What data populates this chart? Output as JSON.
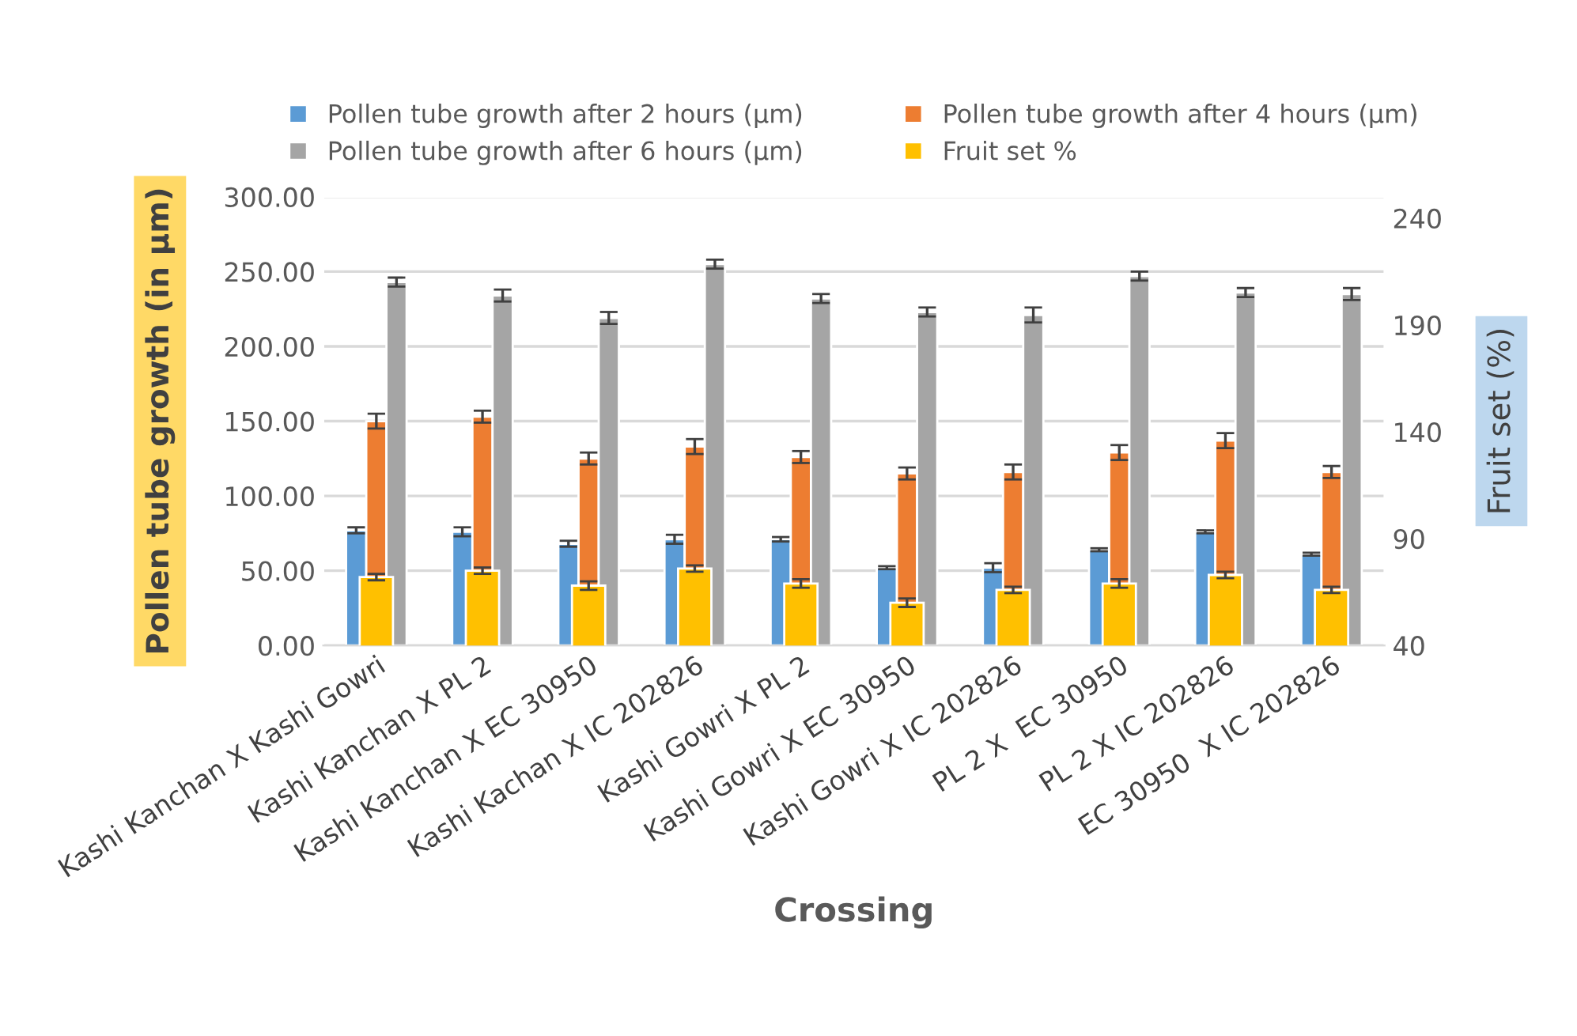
{
  "chart_data": {
    "type": "bar",
    "categories": [
      "Kashi Kanchan X Kashi Gowri",
      "Kashi Kanchan X PL 2",
      "Kashi Kanchan X EC 30950",
      "Kashi Kachan X IC 202826",
      "Kashi Gowri X PL 2",
      "Kashi Gowri X EC 30950",
      "Kashi Gowri X IC 202826",
      "PL 2 X  EC 30950",
      "PL 2 X IC 202826",
      "EC 30950  X IC 202826"
    ],
    "series": [
      {
        "name": "Pollen tube growth after 2 hours (µm)",
        "color": "#5b9bd5",
        "values": [
          77,
          76,
          68,
          71,
          71,
          52,
          52,
          64,
          76,
          61
        ],
        "errors": [
          2,
          3,
          2,
          3,
          1.5,
          1,
          3,
          1,
          1,
          1
        ]
      },
      {
        "name": "Pollen tube growth after 4 hours (µm)",
        "color": "#ed7d31",
        "values": [
          150,
          153,
          125,
          133,
          126,
          115,
          116,
          129,
          137,
          116
        ],
        "errors": [
          5,
          4,
          4,
          5,
          4,
          4,
          5,
          5,
          5,
          4
        ]
      },
      {
        "name": "Pollen tube growth after 6 hours (µm)",
        "color": "#a5a5a5",
        "values": [
          243,
          234,
          219,
          255,
          232,
          223,
          221,
          247,
          236,
          235
        ],
        "errors": [
          3,
          4,
          4,
          3,
          3,
          3,
          5,
          3,
          3,
          4
        ]
      },
      {
        "name": "Fruit set %",
        "color": "#ffc000",
        "axis": "y2",
        "values": [
          72,
          75,
          68,
          76,
          69,
          60,
          66,
          69,
          73,
          66
        ],
        "errors": [
          1.5,
          1.5,
          2,
          1.5,
          2,
          2,
          1.5,
          2,
          1.5,
          1.5
        ]
      }
    ],
    "xlabel": "Crossing",
    "ylabel": "Pollen tube growth (in µm)",
    "y2label": "Fruit set (%)",
    "ylim": [
      0,
      300
    ],
    "yticks": [
      {
        "value": 0,
        "label": "0.00"
      },
      {
        "value": 50,
        "label": "50.00"
      },
      {
        "value": 100,
        "label": "100.00"
      },
      {
        "value": 150,
        "label": "150.00"
      },
      {
        "value": 200,
        "label": "200.00"
      },
      {
        "value": 250,
        "label": "250.00"
      },
      {
        "value": 300,
        "label": "300.00"
      }
    ],
    "y2lim": [
      40,
      250
    ],
    "y2ticks": [
      40,
      90,
      140,
      190,
      240
    ],
    "grid": "y",
    "legend": "top"
  }
}
